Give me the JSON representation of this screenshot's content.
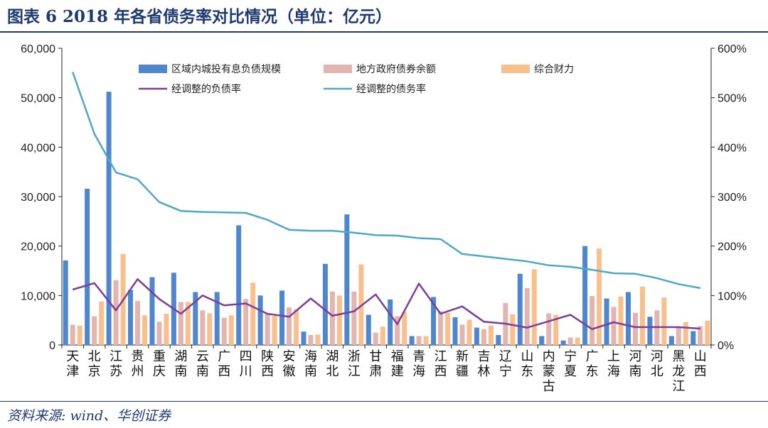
{
  "title": "图表 6   2018 年各省债务率对比情况（单位：亿元）",
  "source": "资料来源: wind、华创证券",
  "colors": {
    "lgfv": "#4e86cf",
    "gov_bond": "#e3b4b0",
    "fiscal": "#f9c08e",
    "debt_ratio": "#7b3f99",
    "liability_ratio": "#4fa9c4",
    "axis": "#222222",
    "title": "#1f3a73"
  },
  "chart_data": {
    "type": "bar",
    "categories": [
      "天津",
      "北京",
      "江苏",
      "贵州",
      "重庆",
      "湖南",
      "云南",
      "广西",
      "四川",
      "陕西",
      "安徽",
      "海南",
      "湖北",
      "浙江",
      "甘肃",
      "福建",
      "青海",
      "江西",
      "新疆",
      "吉林",
      "辽宁",
      "山东",
      "内蒙古",
      "宁夏",
      "广东",
      "上海",
      "河南",
      "河北",
      "黑龙江",
      "山西"
    ],
    "series": [
      {
        "name": "区域内城投有息负债规模",
        "kind": "bar",
        "axis": "left",
        "color_key": "lgfv",
        "values": [
          17100,
          31600,
          51200,
          11100,
          13700,
          14600,
          10700,
          10700,
          24200,
          10000,
          11000,
          2700,
          16400,
          26400,
          6100,
          9200,
          1800,
          9700,
          5600,
          3500,
          2000,
          14400,
          1800,
          900,
          20000,
          9400,
          10700,
          5700,
          1800,
          2800
        ]
      },
      {
        "name": "地方政府债券余额",
        "kind": "bar",
        "axis": "left",
        "color_key": "gov_bond",
        "values": [
          4100,
          5800,
          13100,
          8900,
          4700,
          8700,
          7000,
          5500,
          9300,
          6300,
          7600,
          2000,
          10800,
          10800,
          2500,
          5800,
          1800,
          6800,
          4100,
          3200,
          8500,
          11500,
          6400,
          1500,
          9900,
          7700,
          6500,
          7000,
          3600,
          3800
        ]
      },
      {
        "name": "综合财力",
        "kind": "bar",
        "axis": "left",
        "color_key": "fiscal",
        "values": [
          3900,
          8800,
          18400,
          6000,
          6300,
          8700,
          6400,
          6000,
          12600,
          5900,
          7200,
          2100,
          10000,
          16300,
          3700,
          6700,
          1800,
          6500,
          5100,
          3900,
          6200,
          15300,
          6100,
          1500,
          19500,
          9800,
          11800,
          9600,
          4600,
          4900
        ]
      },
      {
        "name": "经调整的负债率",
        "kind": "line",
        "axis": "right",
        "color_key": "debt_ratio",
        "values": [
          112,
          125,
          70,
          133,
          93,
          63,
          100,
          80,
          84,
          63,
          57,
          94,
          59,
          68,
          102,
          42,
          124,
          63,
          78,
          47,
          43,
          35,
          48,
          61,
          32,
          46,
          36,
          36,
          36,
          33
        ]
      },
      {
        "name": "经调整的债务率",
        "kind": "line",
        "axis": "right",
        "color_key": "liability_ratio",
        "values": [
          552,
          427,
          349,
          335,
          289,
          271,
          269,
          268,
          267,
          253,
          233,
          231,
          231,
          227,
          222,
          221,
          216,
          214,
          184,
          179,
          174,
          169,
          161,
          158,
          152,
          145,
          144,
          135,
          123,
          115
        ]
      }
    ],
    "yleft": {
      "lim": [
        0,
        60000
      ],
      "ticks": [
        "0",
        "10,000",
        "20,000",
        "30,000",
        "40,000",
        "50,000",
        "60,000"
      ]
    },
    "yright": {
      "lim": [
        0,
        600
      ],
      "ticks": [
        "0%",
        "100%",
        "200%",
        "300%",
        "400%",
        "500%",
        "600%"
      ]
    },
    "grid": false,
    "legend_position": "top"
  }
}
